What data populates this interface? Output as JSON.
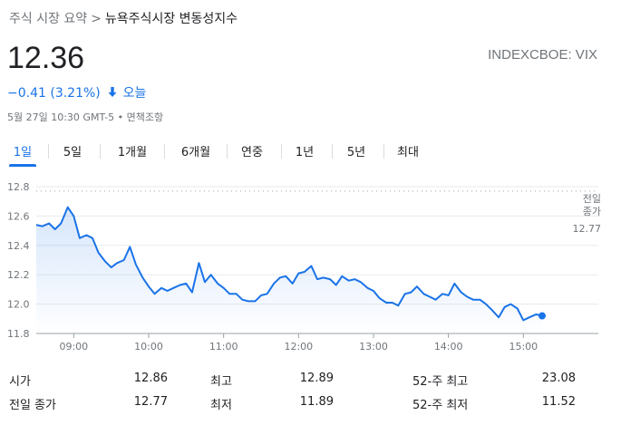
{
  "breadcrumb": {
    "parent": "주식 시장 요약",
    "separator": ">",
    "current": "뉴욕주식시장 변동성지수"
  },
  "quote": {
    "price": "12.36",
    "ticker": "INDEXCBOE: VIX",
    "change": "−0.41 (3.21%)",
    "direction": "down",
    "period_label": "오늘",
    "timestamp": "5월 27일 10:30 GMT-5 • 면책조항",
    "change_color": "#1a73e8"
  },
  "tabs": [
    {
      "label": "1일",
      "active": true
    },
    {
      "label": "5일",
      "active": false
    },
    {
      "label": "1개월",
      "active": false
    },
    {
      "label": "6개월",
      "active": false
    },
    {
      "label": "연중",
      "active": false
    },
    {
      "label": "1년",
      "active": false
    },
    {
      "label": "5년",
      "active": false
    },
    {
      "label": "최대",
      "active": false
    }
  ],
  "chart_data": {
    "type": "area",
    "x_ticks": [
      "09:00",
      "10:00",
      "11:00",
      "12:00",
      "13:00",
      "14:00",
      "15:00"
    ],
    "y_ticks": [
      "12.8",
      "12.6",
      "12.4",
      "12.2",
      "12.0",
      "11.8"
    ],
    "ylim": [
      11.8,
      12.8
    ],
    "x_unit": "hour",
    "xlim": [
      8.5,
      16.0
    ],
    "line_color": "#1a73e8",
    "prev_close": {
      "value": 12.77,
      "label_line1": "전일",
      "label_line2": "종가",
      "value_label": "12.77"
    },
    "series": [
      {
        "x": [
          8.5,
          8.58,
          8.67,
          8.75,
          8.83,
          8.92,
          9.0,
          9.08,
          9.17,
          9.25,
          9.33,
          9.42,
          9.5,
          9.58,
          9.67,
          9.75,
          9.83,
          9.92,
          10.0,
          10.08,
          10.17,
          10.25,
          10.33,
          10.42,
          10.5,
          10.58,
          10.67,
          10.75,
          10.83,
          10.92,
          11.0,
          11.08,
          11.17,
          11.25,
          11.33,
          11.42,
          11.5,
          11.58,
          11.67,
          11.75,
          11.83,
          11.92,
          12.0,
          12.08,
          12.17,
          12.25,
          12.33,
          12.42,
          12.5,
          12.58,
          12.67,
          12.75,
          12.83,
          12.92,
          13.0,
          13.08,
          13.17,
          13.25,
          13.33,
          13.42,
          13.5,
          13.58,
          13.67,
          13.75,
          13.83,
          13.92,
          14.0,
          14.08,
          14.17,
          14.25,
          14.33,
          14.42,
          14.5,
          14.58,
          14.67,
          14.75,
          14.83,
          14.92,
          15.0,
          15.08,
          15.17,
          15.25
        ],
        "y": [
          12.54,
          12.53,
          12.55,
          12.51,
          12.55,
          12.66,
          12.6,
          12.45,
          12.47,
          12.45,
          12.35,
          12.29,
          12.25,
          12.28,
          12.3,
          12.39,
          12.27,
          12.18,
          12.12,
          12.07,
          12.11,
          12.09,
          12.11,
          12.13,
          12.14,
          12.08,
          12.28,
          12.15,
          12.2,
          12.14,
          12.11,
          12.07,
          12.07,
          12.03,
          12.02,
          12.02,
          12.06,
          12.07,
          12.14,
          12.18,
          12.19,
          12.14,
          12.21,
          12.22,
          12.26,
          12.17,
          12.18,
          12.17,
          12.13,
          12.19,
          12.16,
          12.17,
          12.15,
          12.11,
          12.09,
          12.04,
          12.01,
          12.01,
          11.99,
          12.07,
          12.08,
          12.12,
          12.07,
          12.05,
          12.03,
          12.07,
          12.06,
          12.14,
          12.08,
          12.05,
          12.03,
          12.03,
          12.0,
          11.96,
          11.91,
          11.98,
          12.0,
          11.97,
          11.89,
          11.91,
          11.93,
          11.92
        ]
      }
    ]
  },
  "stats": [
    {
      "label": "시가",
      "value": "12.86"
    },
    {
      "label": "최고",
      "value": "12.89"
    },
    {
      "label": "52-주 최고",
      "value": "23.08"
    },
    {
      "label": "전일 종가",
      "value": "12.77"
    },
    {
      "label": "최저",
      "value": "11.89"
    },
    {
      "label": "52-주 최저",
      "value": "11.52"
    }
  ]
}
